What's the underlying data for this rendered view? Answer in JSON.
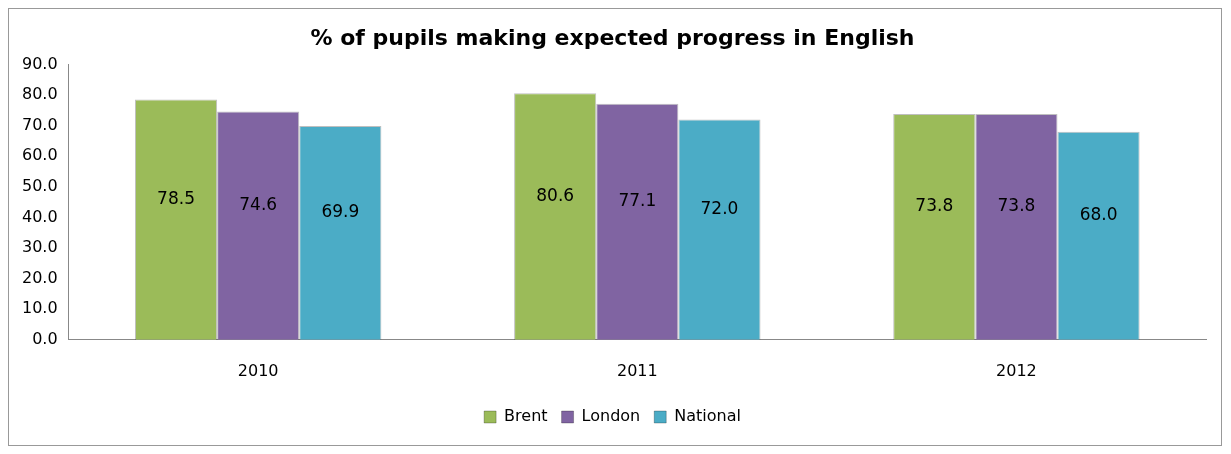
{
  "chart_data": {
    "type": "bar",
    "title": "% of pupils making expected progress in English",
    "categories": [
      "2010",
      "2011",
      "2012"
    ],
    "series": [
      {
        "name": "Brent",
        "color": "#9bbb59",
        "values": [
          78.5,
          80.6,
          73.8
        ],
        "value_labels": [
          "78.5",
          "80.6",
          "73.8"
        ]
      },
      {
        "name": "London",
        "color": "#8064a2",
        "values": [
          74.6,
          77.1,
          73.8
        ],
        "value_labels": [
          "74.6",
          "77.1",
          "73.8"
        ]
      },
      {
        "name": "National",
        "color": "#4bacc6",
        "values": [
          69.9,
          72.0,
          68.0
        ],
        "value_labels": [
          "69.9",
          "72.0",
          "68.0"
        ]
      }
    ],
    "ylim": [
      0,
      90
    ],
    "yticks": [
      {
        "value": 0,
        "label": "0.0"
      },
      {
        "value": 10,
        "label": "10.0"
      },
      {
        "value": 20,
        "label": "20.0"
      },
      {
        "value": 30,
        "label": "30.0"
      },
      {
        "value": 40,
        "label": "40.0"
      },
      {
        "value": 50,
        "label": "50.0"
      },
      {
        "value": 60,
        "label": "60.0"
      },
      {
        "value": 70,
        "label": "70.0"
      },
      {
        "value": 80,
        "label": "80.0"
      },
      {
        "value": 90,
        "label": "90.0"
      }
    ],
    "grid": false,
    "legend": "bottom"
  }
}
